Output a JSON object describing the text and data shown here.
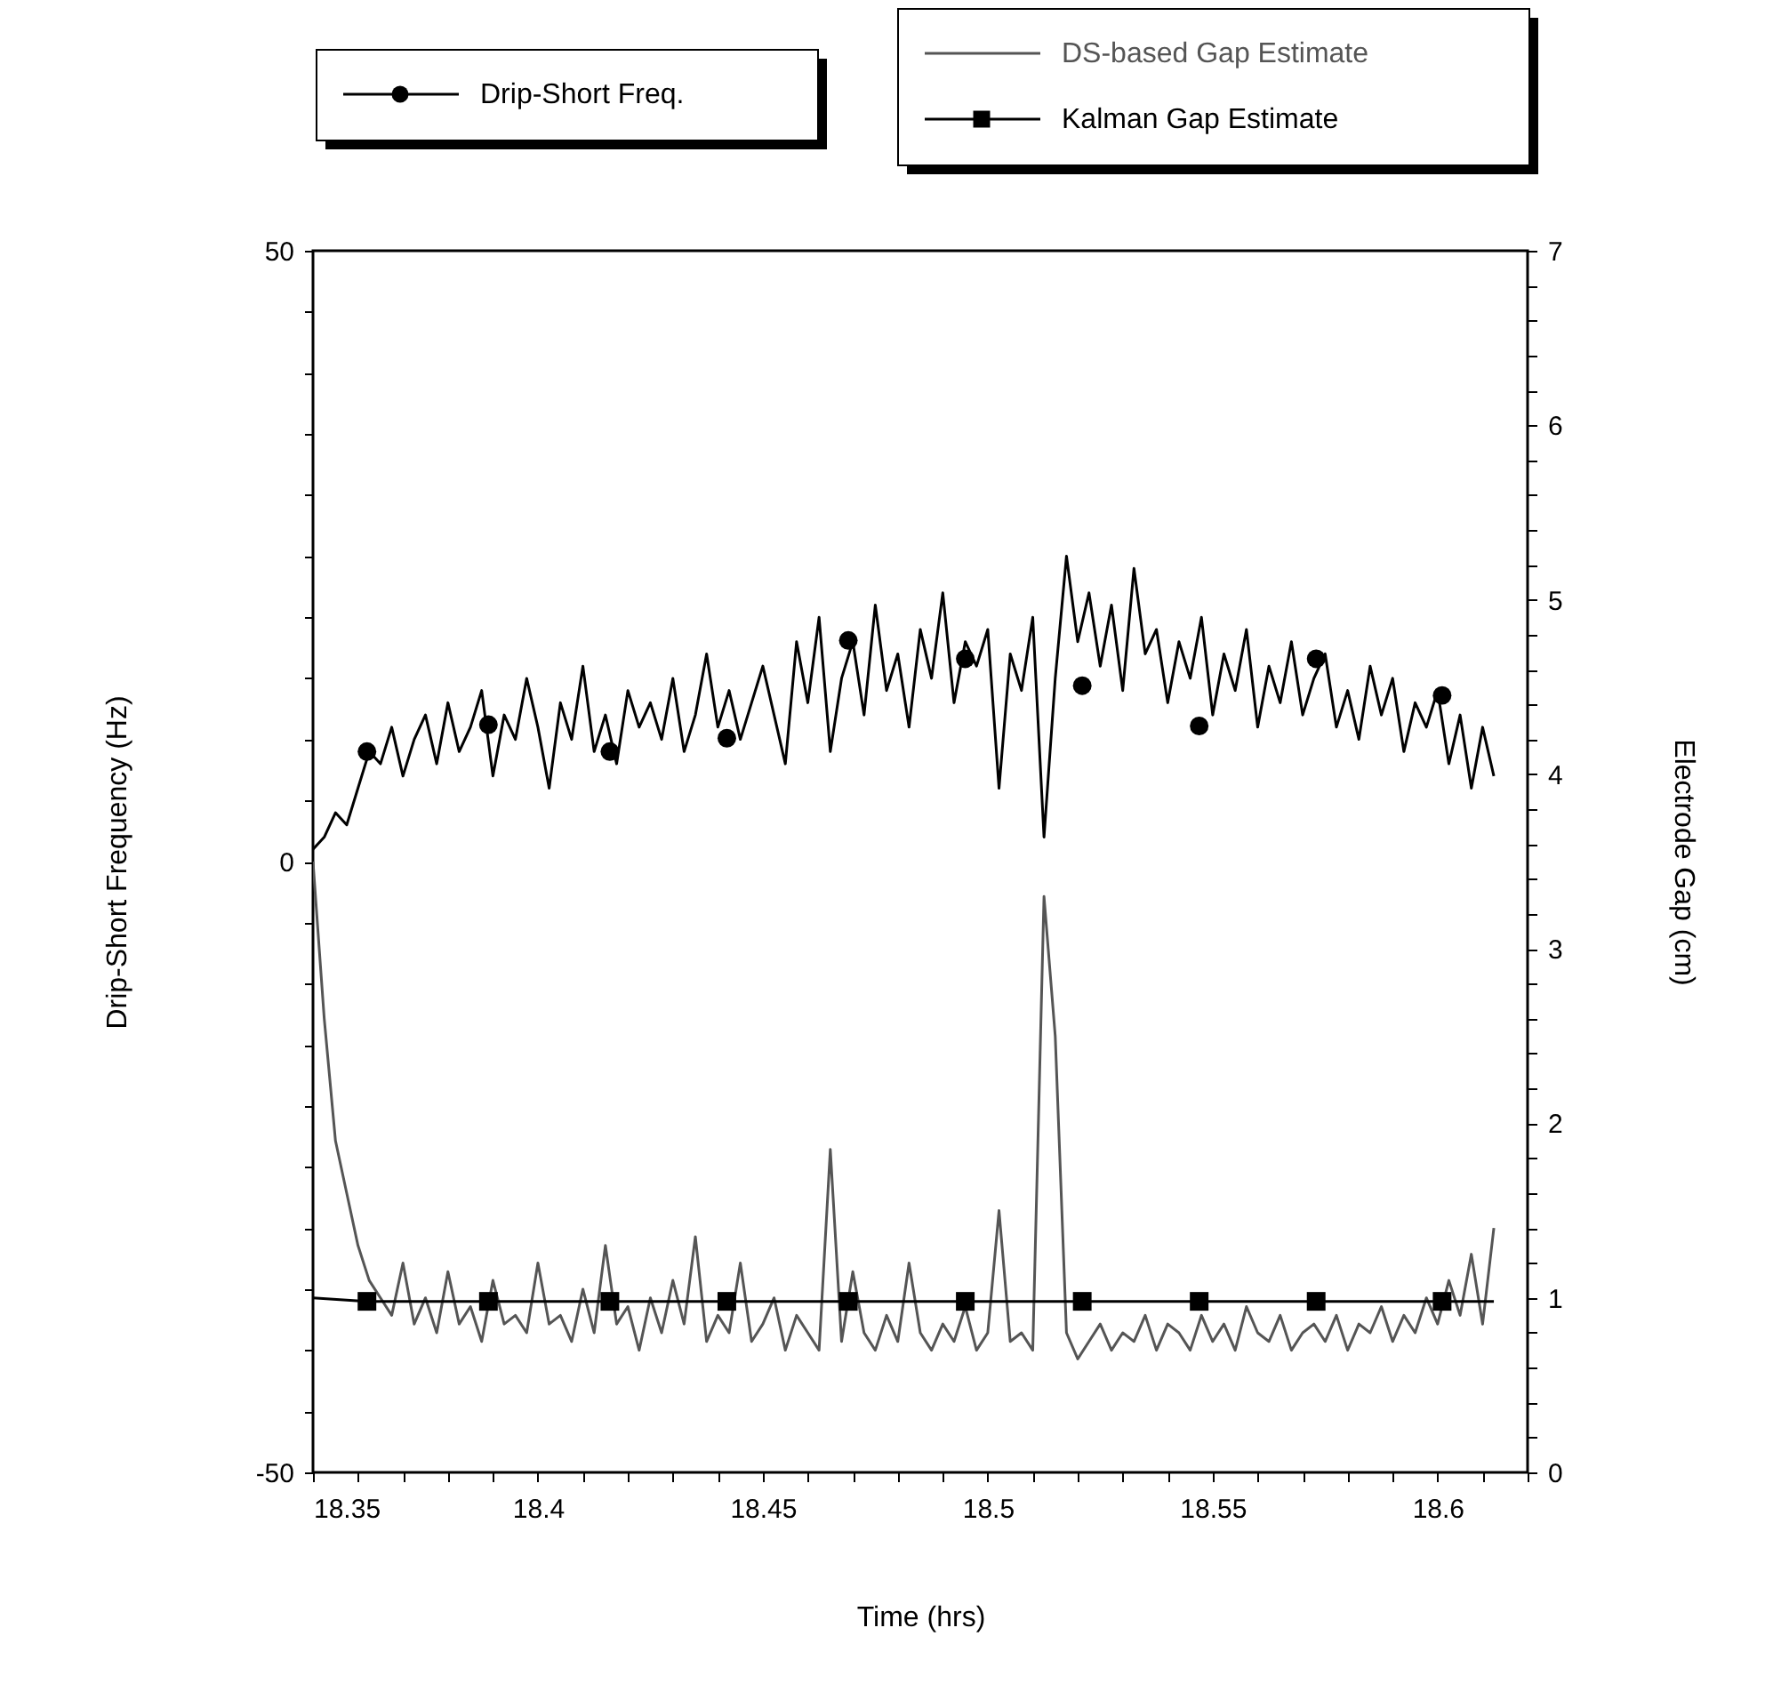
{
  "chart_data": {
    "type": "line",
    "xlabel": "Time (hrs)",
    "ylabel": "Drip-Short Frequency (Hz)",
    "y2label": "Electrode Gap (cm)",
    "x": [
      18.35,
      18.3525,
      18.355,
      18.3575,
      18.36,
      18.3625,
      18.365,
      18.3675,
      18.37,
      18.3725,
      18.375,
      18.3775,
      18.38,
      18.3825,
      18.385,
      18.3875,
      18.39,
      18.3925,
      18.395,
      18.3975,
      18.4,
      18.4025,
      18.405,
      18.4075,
      18.41,
      18.4125,
      18.415,
      18.4175,
      18.42,
      18.4225,
      18.425,
      18.4275,
      18.43,
      18.4325,
      18.435,
      18.4375,
      18.44,
      18.4425,
      18.445,
      18.4475,
      18.45,
      18.4525,
      18.455,
      18.4575,
      18.46,
      18.4625,
      18.465,
      18.4675,
      18.47,
      18.4725,
      18.475,
      18.4775,
      18.48,
      18.4825,
      18.485,
      18.4875,
      18.49,
      18.4925,
      18.495,
      18.4975,
      18.5,
      18.5025,
      18.505,
      18.5075,
      18.51,
      18.5125,
      18.515,
      18.5175,
      18.52,
      18.5225,
      18.525,
      18.5275,
      18.53,
      18.5325,
      18.535,
      18.5375,
      18.54,
      18.5425,
      18.545,
      18.5475,
      18.55,
      18.5525,
      18.555,
      18.5575,
      18.56,
      18.5625,
      18.565,
      18.5675,
      18.57,
      18.5725,
      18.575,
      18.5775,
      18.58,
      18.5825,
      18.585,
      18.5875,
      18.59,
      18.5925,
      18.595,
      18.5975,
      18.6,
      18.6025,
      18.605,
      18.6075,
      18.61,
      18.6125
    ],
    "series": [
      {
        "name": "Drip-Short Freq.",
        "color": "#000000",
        "values": [
          1,
          2,
          4,
          3,
          6,
          9,
          8,
          11,
          7,
          10,
          12,
          8,
          13,
          9,
          11,
          14,
          7,
          12,
          10,
          15,
          11,
          6,
          13,
          10,
          16,
          9,
          12,
          8,
          14,
          11,
          13,
          10,
          15,
          9,
          12,
          17,
          11,
          14,
          10,
          13,
          16,
          12,
          8,
          18,
          13,
          20,
          9,
          15,
          18,
          12,
          21,
          14,
          17,
          11,
          19,
          15,
          22,
          13,
          18,
          16,
          19,
          6,
          17,
          14,
          20,
          2,
          15,
          25,
          18,
          22,
          16,
          21,
          14,
          24,
          17,
          19,
          13,
          18,
          15,
          20,
          12,
          17,
          14,
          19,
          11,
          16,
          13,
          18,
          12,
          15,
          17,
          11,
          14,
          10,
          16,
          12,
          15,
          9,
          13,
          11,
          14,
          8,
          12,
          6,
          11,
          7
        ]
      },
      {
        "type": "scatter",
        "marker": "circle",
        "color": "#000000",
        "x": [
          18.362,
          18.389,
          18.416,
          18.442,
          18.469,
          18.495,
          18.521,
          18.547,
          18.573,
          18.601
        ],
        "values": [
          9.0,
          11.2,
          9.0,
          10.1,
          18.1,
          16.6,
          14.4,
          11.1,
          16.6,
          13.6
        ]
      },
      {
        "name": "DS-based Gap Estimate",
        "axis": "y2",
        "color": "#555555",
        "values": [
          3.5,
          2.6,
          1.9,
          1.6,
          1.3,
          1.1,
          1.0,
          0.9,
          1.2,
          0.85,
          1.0,
          0.8,
          1.15,
          0.85,
          0.95,
          0.75,
          1.1,
          0.85,
          0.9,
          0.8,
          1.2,
          0.85,
          0.9,
          0.75,
          1.05,
          0.8,
          1.3,
          0.85,
          0.95,
          0.7,
          1.0,
          0.8,
          1.1,
          0.85,
          1.35,
          0.75,
          0.9,
          0.8,
          1.2,
          0.75,
          0.85,
          1.0,
          0.7,
          0.9,
          0.8,
          0.7,
          1.85,
          0.75,
          1.15,
          0.8,
          0.7,
          0.9,
          0.75,
          1.2,
          0.8,
          0.7,
          0.85,
          0.75,
          0.95,
          0.7,
          0.8,
          1.5,
          0.75,
          0.8,
          0.7,
          3.3,
          2.5,
          0.8,
          0.65,
          0.75,
          0.85,
          0.7,
          0.8,
          0.75,
          0.9,
          0.7,
          0.85,
          0.8,
          0.7,
          0.9,
          0.75,
          0.85,
          0.7,
          0.95,
          0.8,
          0.75,
          0.9,
          0.7,
          0.8,
          0.85,
          0.75,
          0.9,
          0.7,
          0.85,
          0.8,
          0.95,
          0.75,
          0.9,
          0.8,
          1.0,
          0.85,
          1.1,
          0.9,
          1.25,
          0.85,
          1.4
        ]
      },
      {
        "name": "Kalman Gap Estimate",
        "axis": "y2",
        "color": "#000000",
        "x": [
          18.35,
          18.362,
          18.389,
          18.416,
          18.442,
          18.469,
          18.495,
          18.521,
          18.547,
          18.573,
          18.601,
          18.6125
        ],
        "values": [
          1.0,
          0.98,
          0.98,
          0.98,
          0.98,
          0.98,
          0.98,
          0.98,
          0.98,
          0.98,
          0.98,
          0.98
        ]
      },
      {
        "type": "scatter",
        "marker": "square",
        "axis": "y2",
        "color": "#000000",
        "x": [
          18.362,
          18.389,
          18.416,
          18.442,
          18.469,
          18.495,
          18.521,
          18.547,
          18.573,
          18.601
        ],
        "values": [
          0.98,
          0.98,
          0.98,
          0.98,
          0.98,
          0.98,
          0.98,
          0.98,
          0.98,
          0.98
        ]
      }
    ],
    "xlim": [
      18.35,
      18.62
    ],
    "xticks": [
      18.35,
      {
        "value": 18.36,
        "label": null
      },
      {
        "value": 18.37,
        "label": null
      },
      {
        "value": 18.38,
        "label": null
      },
      {
        "value": 18.39,
        "label": null
      },
      18.4,
      {
        "value": 18.41,
        "label": null
      },
      {
        "value": 18.42,
        "label": null
      },
      {
        "value": 18.43,
        "label": null
      },
      {
        "value": 18.44,
        "label": null
      },
      18.45,
      {
        "value": 18.46,
        "label": null
      },
      {
        "value": 18.47,
        "label": null
      },
      {
        "value": 18.48,
        "label": null
      },
      {
        "value": 18.49,
        "label": null
      },
      18.5,
      {
        "value": 18.51,
        "label": null
      },
      {
        "value": 18.52,
        "label": null
      },
      {
        "value": 18.53,
        "label": null
      },
      {
        "value": 18.54,
        "label": null
      },
      18.55,
      {
        "value": 18.56,
        "label": null
      },
      {
        "value": 18.57,
        "label": null
      },
      {
        "value": 18.58,
        "label": null
      },
      {
        "value": 18.59,
        "label": null
      },
      18.6,
      {
        "value": 18.61,
        "label": null
      },
      {
        "value": 18.62,
        "label": null
      }
    ],
    "ylim": [
      -50,
      50
    ],
    "yticks": [
      -50,
      {
        "value": -45,
        "label": null
      },
      {
        "value": -40,
        "label": null
      },
      {
        "value": -35,
        "label": null
      },
      {
        "value": -30,
        "label": null
      },
      {
        "value": -25,
        "label": null
      },
      {
        "value": -20,
        "label": null
      },
      {
        "value": -15,
        "label": null
      },
      {
        "value": -10,
        "label": null
      },
      {
        "value": -5,
        "label": null
      },
      0,
      {
        "value": 5,
        "label": null
      },
      {
        "value": 10,
        "label": null
      },
      {
        "value": 15,
        "label": null
      },
      {
        "value": 20,
        "label": null
      },
      {
        "value": 25,
        "label": null
      },
      {
        "value": 30,
        "label": null
      },
      {
        "value": 35,
        "label": null
      },
      {
        "value": 40,
        "label": null
      },
      {
        "value": 45,
        "label": null
      },
      50
    ],
    "y2lim": [
      0,
      7
    ],
    "y2ticks": [
      0,
      {
        "value": 0.2,
        "label": null
      },
      {
        "value": 0.4,
        "label": null
      },
      {
        "value": 0.6,
        "label": null
      },
      {
        "value": 0.8,
        "label": null
      },
      1,
      {
        "value": 1.2,
        "label": null
      },
      {
        "value": 1.4,
        "label": null
      },
      {
        "value": 1.6,
        "label": null
      },
      {
        "value": 1.8,
        "label": null
      },
      2,
      {
        "value": 2.2,
        "label": null
      },
      {
        "value": 2.4,
        "label": null
      },
      {
        "value": 2.6,
        "label": null
      },
      {
        "value": 2.8,
        "label": null
      },
      3,
      {
        "value": 3.2,
        "label": null
      },
      {
        "value": 3.4,
        "label": null
      },
      {
        "value": 3.6,
        "label": null
      },
      {
        "value": 3.8,
        "label": null
      },
      4,
      {
        "value": 4.2,
        "label": null
      },
      {
        "value": 4.4,
        "label": null
      },
      {
        "value": 4.6,
        "label": null
      },
      {
        "value": 4.8,
        "label": null
      },
      5,
      {
        "value": 5.2,
        "label": null
      },
      {
        "value": 5.4,
        "label": null
      },
      {
        "value": 5.6,
        "label": null
      },
      {
        "value": 5.8,
        "label": null
      },
      6,
      {
        "value": 6.2,
        "label": null
      },
      {
        "value": 6.4,
        "label": null
      },
      {
        "value": 6.6,
        "label": null
      },
      {
        "value": 6.8,
        "label": null
      },
      7
    ],
    "grid": false,
    "legend": "top"
  }
}
